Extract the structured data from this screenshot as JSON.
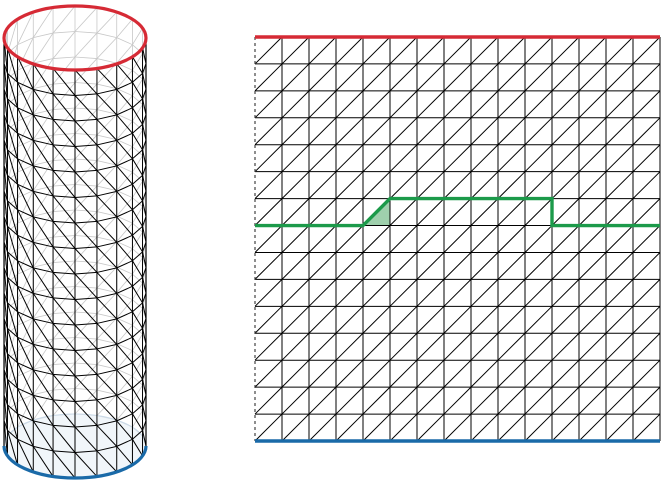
{
  "figure": {
    "cylinder": {
      "rings": 16,
      "segments": 20
    },
    "flat_mesh": {
      "columns": 15,
      "rows": 15
    },
    "path": {
      "column_start": 4,
      "column_end": 11,
      "base_row": 7,
      "step_row": 6
    },
    "colors": {
      "top_boundary": "#d62a35",
      "bottom_boundary": "#1a6aa8",
      "path": "#1c9a4a",
      "highlight_fill": "#9fd0ad",
      "mesh_line": "#000000",
      "hidden_line": "#c8c8c8",
      "seam": "#444444"
    }
  }
}
